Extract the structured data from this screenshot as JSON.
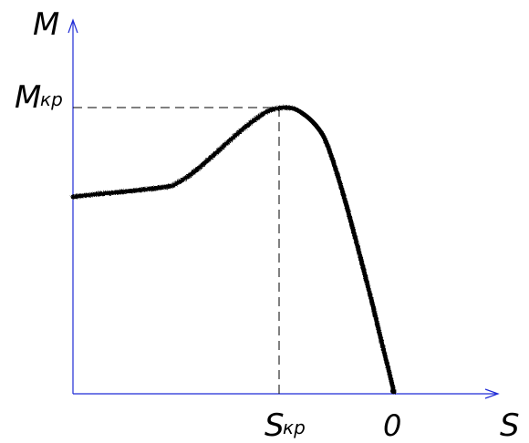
{
  "labels": {
    "y_axis": "M",
    "x_axis": "S",
    "m_kr_main": "M",
    "m_kr_sub": "кр",
    "s_kr_main": "S",
    "s_kr_sub": "кр",
    "zero": "0"
  },
  "colors": {
    "axis": "#1f2bd6",
    "curve": "#000000",
    "guide": "#000000",
    "background": "#ffffff"
  }
}
